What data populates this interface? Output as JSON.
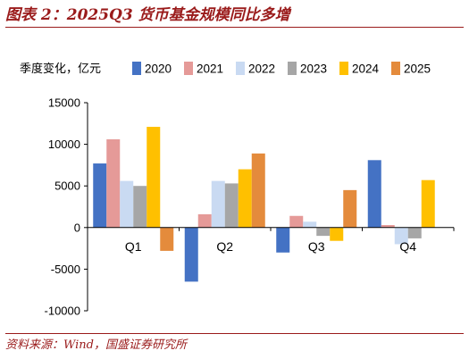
{
  "header": {
    "title": "图表 2：2025Q3 货币基金规模同比多增"
  },
  "footer": {
    "source": "资料来源：Wind，国盛证券研究所"
  },
  "chart_data": {
    "type": "bar",
    "unit_label": "季度变化，亿元",
    "categories": [
      "Q1",
      "Q2",
      "Q3",
      "Q4"
    ],
    "ylim": [
      -10000,
      15000
    ],
    "yticks": [
      15000,
      10000,
      5000,
      0,
      -5000,
      -10000
    ],
    "legend_position": "top",
    "grid": false,
    "series": [
      {
        "name": "2020",
        "color": "#4472c4",
        "values": [
          7700,
          -6500,
          -3000,
          8100
        ]
      },
      {
        "name": "2021",
        "color": "#e59a98",
        "values": [
          10600,
          1600,
          1400,
          300
        ]
      },
      {
        "name": "2022",
        "color": "#c9daf2",
        "values": [
          5600,
          5600,
          700,
          -2000
        ]
      },
      {
        "name": "2023",
        "color": "#a6a6a6",
        "values": [
          5000,
          5300,
          -1000,
          -1300
        ]
      },
      {
        "name": "2024",
        "color": "#ffc000",
        "values": [
          12100,
          7000,
          -1600,
          5700
        ]
      },
      {
        "name": "2025",
        "color": "#e48b3c",
        "values": [
          -2800,
          8900,
          4500,
          null
        ]
      }
    ]
  }
}
